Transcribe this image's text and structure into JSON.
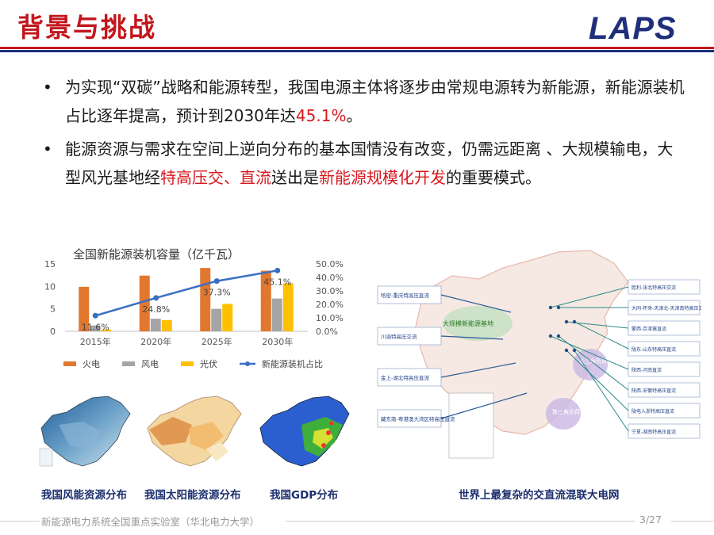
{
  "header": {
    "title": "背景与挑战",
    "logo": "LAPS"
  },
  "bullets": [
    {
      "parts": [
        {
          "text": "为实现“双碳”战略和能源转型，我国电源主体将逐步由常规电源转为新能源，新能源装机占比逐年提高，预计到2030年达",
          "hl": false
        },
        {
          "text": "45.1%",
          "hl": true
        },
        {
          "text": "。",
          "hl": false
        }
      ]
    },
    {
      "parts": [
        {
          "text": "能源资源与需求在空间上逆向分布的基本国情没有改变，仍需远距离 、大规模输电，大型风光基地经",
          "hl": false
        },
        {
          "text": "特高压交、直流",
          "hl": true
        },
        {
          "text": "送出是",
          "hl": false
        },
        {
          "text": "新能源规模化开发",
          "hl": true
        },
        {
          "text": "的重要模式。",
          "hl": false
        }
      ]
    }
  ],
  "chart_data": {
    "type": "bar",
    "title": "全国新能源装机容量（亿千瓦）",
    "categories": [
      "2015年",
      "2020年",
      "2025年",
      "2030年"
    ],
    "series": [
      {
        "name": "火电",
        "values": [
          9.9,
          12.4,
          14.1,
          13.5
        ],
        "color": "#e2772f"
      },
      {
        "name": "风电",
        "values": [
          1.3,
          2.8,
          5.0,
          7.3
        ],
        "color": "#a5a5a5"
      },
      {
        "name": "光伏",
        "values": [
          0.4,
          2.5,
          6.1,
          10.7
        ],
        "color": "#ffc000"
      }
    ],
    "line": {
      "name": "新能源装机占比",
      "values": [
        11.6,
        24.8,
        37.3,
        45.1
      ],
      "labels": [
        "11.6%",
        "24.8%",
        "37.3%",
        "45.1%"
      ],
      "color": "#3a6fc4"
    },
    "ylim_left": [
      0,
      15
    ],
    "yticks_left": [
      "0",
      "5",
      "10",
      "15"
    ],
    "ylim_right": [
      0,
      50
    ],
    "yticks_right": [
      "0.0%",
      "10.0%",
      "20.0%",
      "30.0%",
      "40.0%",
      "50.0%"
    ],
    "legend_position": "bottom"
  },
  "maps": {
    "captions": [
      "我国风能资源分布",
      "我国太阳能资源分布",
      "我国GDP分布",
      "世界上最复杂的交直流混联大电网"
    ],
    "grid_base_label": "大规模新能源基地",
    "load_centers": [
      "长三角负荷中心",
      "珠三角负荷中心"
    ],
    "lines_left": [
      "哈密-重庆特高压直流",
      "川渝特高压交流",
      "金上-湖北特高压直流",
      "藏东南-粤港澳大湾区特高压直流"
    ],
    "lines_right": [
      "胜利-张北特高压交流",
      "大同-怀来-天津北-天津南特高压交流",
      "蒙西-京津冀直流",
      "陇东-山东特高压直流",
      "陕西-河南直流",
      "陕西-安徽特高压直流",
      "陇电入浙特高压直流",
      "宁夏-湖南特高压直流"
    ]
  },
  "footer": {
    "lab": "新能源电力系统全国重点实验室（华北电力大学）",
    "page": "3/27"
  }
}
